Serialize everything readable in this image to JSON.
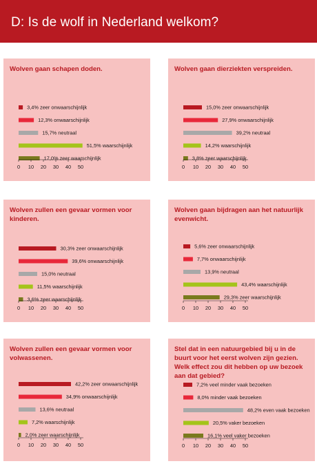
{
  "header": {
    "title": "D: Is de wolf in Nederland welkom?"
  },
  "colors": {
    "header_bg": "#b81a22",
    "panel_bg": "#f7c2c1",
    "title_text": "#b81a22",
    "series": [
      "#b81a22",
      "#e8283a",
      "#a8a8a8",
      "#a4c41a",
      "#7a7a1e"
    ]
  },
  "chart_data": [
    {
      "type": "bar",
      "orientation": "horizontal",
      "title": "Wolven gaan schapen doden.",
      "categories": [
        "zeer onwaarschijnlijk",
        "onwaarschijnlijk",
        "neutraal",
        "waarschijnlijk",
        "zeer waarschijnlijk"
      ],
      "values": [
        3.4,
        12.3,
        15.7,
        51.5,
        17.0
      ],
      "value_labels": [
        "3,4%",
        "12,3%",
        "15,7%",
        "51,5%",
        "17,0%"
      ],
      "xlim": [
        0,
        50
      ],
      "xticks": [
        "0",
        "10",
        "20",
        "30",
        "40",
        "50"
      ],
      "grid": false
    },
    {
      "type": "bar",
      "orientation": "horizontal",
      "title": "Wolven gaan dierziekten verspreiden.",
      "categories": [
        "zeer onwaarschijnlijk",
        "onwaarschijnlijk",
        "neutraal",
        "waarschijnlijk",
        "zeer waarschijnlijk"
      ],
      "values": [
        15.0,
        27.9,
        39.2,
        14.2,
        3.8
      ],
      "value_labels": [
        "15,0%",
        "27,9%",
        "39,2%",
        "14,2%",
        "3,8%"
      ],
      "xlim": [
        0,
        50
      ],
      "xticks": [
        "0",
        "10",
        "20",
        "30",
        "40",
        "50"
      ],
      "grid": false
    },
    {
      "type": "bar",
      "orientation": "horizontal",
      "title": "Wolven zullen een gevaar vormen voor kinderen.",
      "categories": [
        "zeer onwaarschijnlijk",
        "onwaarschijnlijk",
        "neutraal",
        "waarschijnlijk",
        "zeer waarschijnlijk"
      ],
      "values": [
        30.3,
        39.6,
        15.0,
        11.5,
        3.6
      ],
      "value_labels": [
        "30,3%",
        "39,6%",
        "15,0%",
        "11,5%",
        "3,6%"
      ],
      "xlim": [
        0,
        50
      ],
      "xticks": [
        "0",
        "10",
        "20",
        "30",
        "40",
        "50"
      ],
      "grid": false
    },
    {
      "type": "bar",
      "orientation": "horizontal",
      "title": "Wolven gaan bijdragen aan het natuurlijk evenwicht.",
      "categories": [
        "zeer onwaarschijnlijk",
        "onwaarschijnlijk",
        "neutraal",
        "waarschijnlijk",
        "zeer waarschijnlijk"
      ],
      "values": [
        5.6,
        7.7,
        13.9,
        43.4,
        29.3
      ],
      "value_labels": [
        "5,6%",
        "7,7%",
        "13,9%",
        "43,4%",
        "29,3%"
      ],
      "xlim": [
        0,
        50
      ],
      "xticks": [
        "0",
        "10",
        "20",
        "30",
        "40",
        "50"
      ],
      "grid": false
    },
    {
      "type": "bar",
      "orientation": "horizontal",
      "title": "Wolven zullen een gevaar vormen voor volwassenen.",
      "categories": [
        "zeer onwaarschijnlijk",
        "onwaarschijnlijk",
        "neutraal",
        "waarschijnlijk",
        "zeer waarschijnlijk"
      ],
      "values": [
        42.2,
        34.9,
        13.6,
        7.2,
        2.0
      ],
      "value_labels": [
        "42,2%",
        "34,9%",
        "13,6%",
        "7,2%",
        "2,0%"
      ],
      "xlim": [
        0,
        50
      ],
      "xticks": [
        "0",
        "10",
        "20",
        "30",
        "40",
        "50"
      ],
      "grid": false
    },
    {
      "type": "bar",
      "orientation": "horizontal",
      "title": "Stel dat in een natuurgebied bij u in de buurt voor het eerst wolven zijn gezien. Welk effect zou dit hebben op uw bezoek aan dat gebied?",
      "categories": [
        "veel minder vaak bezoeken",
        "minder vaak bezoeken",
        "even vaak bezoeken",
        "vaker bezoeken",
        "veel vaker bezoeken"
      ],
      "values": [
        7.2,
        8.0,
        48.2,
        20.5,
        16.1
      ],
      "value_labels": [
        "7,2%",
        "8,0%",
        "48,2%",
        "20,5%",
        "16,1%"
      ],
      "xlim": [
        0,
        50
      ],
      "xticks": [
        "0",
        "10",
        "20",
        "30",
        "40",
        "50"
      ],
      "grid": false
    }
  ]
}
